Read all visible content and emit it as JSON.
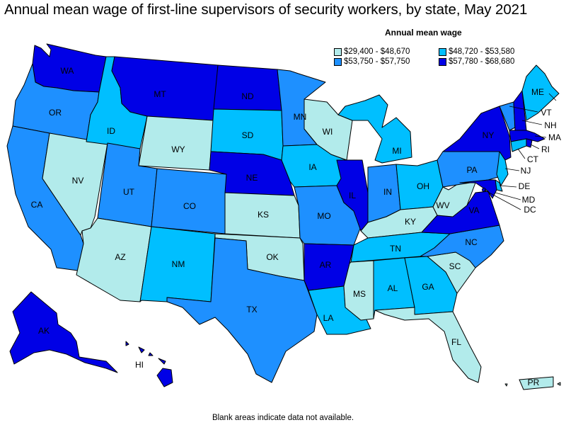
{
  "title": "Annual mean wage of first-line supervisors of security workers, by state, May 2021",
  "legend": {
    "title": "Annual mean wage",
    "bins": [
      {
        "id": "b1",
        "label": "$29,400 - $48,670",
        "color": "#b2ebeb"
      },
      {
        "id": "b2",
        "label": "$48,720 - $53,580",
        "color": "#00bfff"
      },
      {
        "id": "b3",
        "label": "$53,750 - $57,750",
        "color": "#1e90ff"
      },
      {
        "id": "b4",
        "label": "$57,780 - $68,680",
        "color": "#0000e6"
      }
    ]
  },
  "states": {
    "WA": "b4",
    "OR": "b3",
    "CA": "b3",
    "NV": "b1",
    "ID": "b2",
    "MT": "b4",
    "WY": "b1",
    "UT": "b3",
    "AZ": "b1",
    "CO": "b3",
    "NM": "b2",
    "ND": "b4",
    "SD": "b2",
    "NE": "b4",
    "KS": "b1",
    "OK": "b1",
    "TX": "b3",
    "MN": "b3",
    "IA": "b2",
    "MO": "b3",
    "AR": "b4",
    "LA": "b2",
    "WI": "b1",
    "IL": "b4",
    "MI": "b2",
    "IN": "b3",
    "OH": "b2",
    "KY": "b1",
    "TN": "b2",
    "MS": "b1",
    "AL": "b2",
    "GA": "b2",
    "FL": "b1",
    "SC": "b1",
    "NC": "b3",
    "VA": "b4",
    "WV": "b1",
    "PA": "b3",
    "NY": "b4",
    "VT": "b3",
    "NH": "b4",
    "ME": "b2",
    "MA": "b4",
    "RI": "b4",
    "CT": "b2",
    "NJ": "b2",
    "DE": "b2",
    "MD": "b4",
    "DC": "b4",
    "AK": "b4",
    "HI": "b4",
    "PR": "b1"
  },
  "labels": {
    "WA": "WA",
    "OR": "OR",
    "CA": "CA",
    "NV": "NV",
    "ID": "ID",
    "MT": "MT",
    "WY": "WY",
    "UT": "UT",
    "AZ": "AZ",
    "CO": "CO",
    "NM": "NM",
    "ND": "ND",
    "SD": "SD",
    "NE": "NE",
    "KS": "KS",
    "OK": "OK",
    "TX": "TX",
    "MN": "MN",
    "IA": "IA",
    "MO": "MO",
    "AR": "AR",
    "LA": "LA",
    "WI": "WI",
    "IL": "IL",
    "MI": "MI",
    "IN": "IN",
    "OH": "OH",
    "KY": "KY",
    "TN": "TN",
    "MS": "MS",
    "AL": "AL",
    "GA": "GA",
    "FL": "FL",
    "SC": "SC",
    "NC": "NC",
    "VA": "VA",
    "WV": "WV",
    "PA": "PA",
    "NY": "NY",
    "VT": "VT",
    "NH": "NH",
    "ME": "ME",
    "MA": "MA",
    "RI": "RI",
    "CT": "CT",
    "NJ": "NJ",
    "DE": "DE",
    "MD": "MD",
    "DC": "DC",
    "AK": "AK",
    "HI": "HI",
    "PR": "PR"
  },
  "footnote": "Blank areas indicate data not available."
}
